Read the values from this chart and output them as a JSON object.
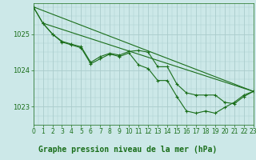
{
  "bg_color": "#cce8e8",
  "grid_color": "#aacccc",
  "line_color": "#1a6e1a",
  "marker_color": "#1a6e1a",
  "title": "Graphe pression niveau de la mer (hPa)",
  "xlim": [
    0,
    23
  ],
  "ylim": [
    1022.5,
    1025.85
  ],
  "yticks": [
    1023,
    1024,
    1025
  ],
  "xticks": [
    0,
    1,
    2,
    3,
    4,
    5,
    6,
    7,
    8,
    9,
    10,
    11,
    12,
    13,
    14,
    15,
    16,
    17,
    18,
    19,
    20,
    21,
    22,
    23
  ],
  "series": [
    {
      "x": [
        0,
        1,
        2,
        3,
        4,
        5,
        6,
        7,
        8,
        9,
        10,
        11,
        12,
        13,
        14,
        15,
        16,
        17,
        18,
        19,
        20,
        21,
        22,
        23
      ],
      "y": [
        1025.75,
        1025.3,
        1025.0,
        1024.8,
        1024.72,
        1024.65,
        1024.22,
        1024.38,
        1024.47,
        1024.42,
        1024.52,
        1024.55,
        1024.5,
        1024.1,
        1024.1,
        1023.62,
        1023.38,
        1023.32,
        1023.32,
        1023.32,
        1023.12,
        1023.08,
        1023.28,
        1023.42
      ],
      "marker": true
    },
    {
      "x": [
        0,
        1,
        2,
        3,
        4,
        5,
        6,
        7,
        8,
        9,
        10,
        11,
        12,
        13,
        14,
        15,
        16,
        17,
        18,
        19,
        20,
        21,
        22,
        23
      ],
      "y": [
        1025.75,
        1025.3,
        1025.0,
        1024.78,
        1024.7,
        1024.62,
        1024.18,
        1024.32,
        1024.45,
        1024.38,
        1024.48,
        1024.15,
        1024.05,
        1023.72,
        1023.72,
        1023.28,
        1022.88,
        1022.82,
        1022.88,
        1022.82,
        1022.98,
        1023.12,
        1023.32,
        1023.42
      ],
      "marker": true
    },
    {
      "x": [
        0,
        23
      ],
      "y": [
        1025.75,
        1023.42
      ],
      "marker": false
    },
    {
      "x": [
        1,
        23
      ],
      "y": [
        1025.3,
        1023.42
      ],
      "marker": false
    }
  ],
  "title_fontsize": 7,
  "tick_fontsize": 5.5
}
